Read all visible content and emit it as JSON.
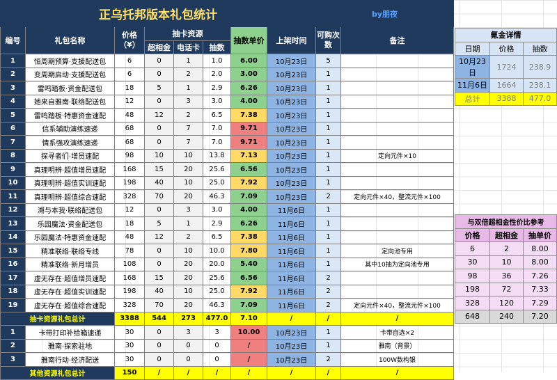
{
  "title": "正乌托邦版本礼包统计",
  "author": "by朋夜",
  "headers": {
    "idx": "编号",
    "name": "礼包名称",
    "price": "价格（¥）",
    "draw_group": "抽卡资源",
    "chaoxiang": "超相金",
    "dianhua": "电话卡",
    "draws": "抽数",
    "unit": "抽数单价",
    "date": "上架时间",
    "qty": "可购次数",
    "note": "备注"
  },
  "rows": [
    {
      "idx": "1",
      "name": "恒周期预算·支援配送包",
      "price": "6",
      "cx": "0",
      "dh": "1",
      "draws": "1.0",
      "unit": "6.00",
      "uc": "u-green",
      "date": "10月23日",
      "qty": "5",
      "note": ""
    },
    {
      "idx": "2",
      "name": "变周期启动·支援配送包",
      "price": "6",
      "cx": "0",
      "dh": "2",
      "draws": "2.0",
      "unit": "3.00",
      "uc": "u-green",
      "date": "10月23日",
      "qty": "1",
      "note": ""
    },
    {
      "idx": "3",
      "name": "雷鸣踏板·资金配送包",
      "price": "18",
      "cx": "5",
      "dh": "1",
      "draws": "2.9",
      "unit": "6.26",
      "uc": "u-green",
      "date": "10月23日",
      "qty": "1",
      "note": ""
    },
    {
      "idx": "4",
      "name": "她来自雅南·联络配送包",
      "price": "12",
      "cx": "0",
      "dh": "3",
      "draws": "3.0",
      "unit": "4.00",
      "uc": "u-green",
      "date": "10月23日",
      "qty": "1",
      "note": ""
    },
    {
      "idx": "5",
      "name": "雷鸣踏板·特惠资金速配",
      "price": "48",
      "cx": "12",
      "dh": "2",
      "draws": "6.5",
      "unit": "7.38",
      "uc": "u-yellow",
      "date": "10月23日",
      "qty": "1",
      "note": ""
    },
    {
      "idx": "6",
      "name": "信系辅助演练速递",
      "price": "68",
      "cx": "0",
      "dh": "7",
      "draws": "7.0",
      "unit": "9.71",
      "uc": "u-red",
      "date": "10月23日",
      "qty": "1",
      "note": ""
    },
    {
      "idx": "7",
      "name": "情系强攻演练速递",
      "price": "68",
      "cx": "0",
      "dh": "7",
      "draws": "7.0",
      "unit": "9.71",
      "uc": "u-red",
      "date": "10月23日",
      "qty": "1",
      "note": ""
    },
    {
      "idx": "8",
      "name": "探寻者们·增员速配",
      "price": "98",
      "cx": "10",
      "dh": "10",
      "draws": "13.8",
      "unit": "7.13",
      "uc": "u-yellow",
      "date": "10月23日",
      "qty": "1",
      "note": "定向元件×10"
    },
    {
      "idx": "9",
      "name": "真理明辨·超值增员速配",
      "price": "168",
      "cx": "15",
      "dh": "20",
      "draws": "25.6",
      "unit": "6.56",
      "uc": "u-green",
      "date": "10月23日",
      "qty": "1",
      "note": ""
    },
    {
      "idx": "10",
      "name": "真理明辨·超值实训速配",
      "price": "198",
      "cx": "40",
      "dh": "10",
      "draws": "25.0",
      "unit": "7.92",
      "uc": "u-yellow",
      "date": "10月23日",
      "qty": "1",
      "note": ""
    },
    {
      "idx": "11",
      "name": "真理明辨·超值综合速配",
      "price": "328",
      "cx": "70",
      "dh": "20",
      "draws": "46.3",
      "unit": "7.09",
      "uc": "u-green",
      "date": "10月23日",
      "qty": "2",
      "note": "定向元件×40，整流元件×100"
    },
    {
      "idx": "12",
      "name": "溯与本我·联络配送包",
      "price": "12",
      "cx": "0",
      "dh": "3",
      "draws": "3.0",
      "unit": "4.00",
      "uc": "u-green",
      "date": "11月6日",
      "qty": "1",
      "note": ""
    },
    {
      "idx": "13",
      "name": "乐园魔法·资金配送包",
      "price": "18",
      "cx": "5",
      "dh": "1",
      "draws": "2.9",
      "unit": "6.26",
      "uc": "u-green",
      "date": "11月6日",
      "qty": "1",
      "note": ""
    },
    {
      "idx": "14",
      "name": "乐园魔法·特惠资金速配",
      "price": "48",
      "cx": "12",
      "dh": "2",
      "draws": "6.5",
      "unit": "7.38",
      "uc": "u-yellow",
      "date": "11月6日",
      "qty": "1",
      "note": ""
    },
    {
      "idx": "15",
      "name": "精准联络·联络专线",
      "price": "78",
      "cx": "0",
      "dh": "10",
      "draws": "10.0",
      "unit": "7.80",
      "uc": "u-yellow",
      "date": "11月6日",
      "qty": "1",
      "note": "定向池专用"
    },
    {
      "idx": "16",
      "name": "精准联络·新月增员",
      "price": "108",
      "cx": "0",
      "dh": "20",
      "draws": "20.0",
      "unit": "5.40",
      "uc": "u-green",
      "date": "11月6日",
      "qty": "1",
      "note": "其中10抽为定向池专用"
    },
    {
      "idx": "17",
      "name": "虚无存在·超值增员速配",
      "price": "168",
      "cx": "15",
      "dh": "20",
      "draws": "25.6",
      "unit": "6.56",
      "uc": "u-green",
      "date": "11月6日",
      "qty": "2",
      "note": ""
    },
    {
      "idx": "18",
      "name": "虚无存在·超值实训速配",
      "price": "198",
      "cx": "40",
      "dh": "10",
      "draws": "25.0",
      "unit": "7.92",
      "uc": "u-yellow",
      "date": "11月6日",
      "qty": "2",
      "note": ""
    },
    {
      "idx": "19",
      "name": "虚无存在·超值综合速配",
      "price": "328",
      "cx": "70",
      "dh": "20",
      "draws": "46.3",
      "unit": "7.09",
      "uc": "u-green",
      "date": "11月6日",
      "qty": "2",
      "note": "定向元件×40，整流元件×100"
    }
  ],
  "total1": {
    "label": "抽卡资源礼包总计",
    "price": "3388",
    "cx": "544",
    "dh": "273",
    "draws": "477.0",
    "unit": "7.10",
    "date": "/",
    "qty": "/",
    "note": "/"
  },
  "rows2": [
    {
      "idx": "1",
      "name": "卡带打印补给箱速递",
      "price": "30",
      "cx": "0",
      "dh": "3",
      "draws": "3",
      "unit": "10.00",
      "uc": "u-red",
      "date": "10月23日",
      "qty": "1",
      "note": "卡带自选×2"
    },
    {
      "idx": "2",
      "name": "雅南·探索驻地",
      "price": "30",
      "cx": "0",
      "dh": "0",
      "draws": "0",
      "unit": "/",
      "uc": "u-red",
      "date": "10月23日",
      "qty": "1",
      "note": "雅南（背景）"
    },
    {
      "idx": "3",
      "name": "雅南行动·经济配送",
      "price": "30",
      "cx": "0",
      "dh": "0",
      "draws": "0",
      "unit": "/",
      "uc": "u-red",
      "date": "10月23日",
      "qty": "2",
      "note": "100W数构银"
    }
  ],
  "total2": {
    "label": "其他资源礼包总计",
    "price": "150",
    "cx": "/",
    "dh": "/",
    "draws": "/",
    "unit": "/",
    "date": "/",
    "qty": "/",
    "note": "/"
  },
  "gold": {
    "title": "氪金详情",
    "headers": [
      "日期",
      "价格",
      "抽数"
    ],
    "rows": [
      {
        "date": "10月23日",
        "price": "1724",
        "draws": "238.9"
      },
      {
        "date": "11月6日",
        "price": "1664",
        "draws": "238.1"
      }
    ],
    "total": {
      "label": "总计",
      "price": "3388",
      "draws": "477.0"
    }
  },
  "compare": {
    "title": "与双倍超相金性价比参考",
    "headers": [
      "价格",
      "超相金",
      "抽单价"
    ],
    "rows": [
      {
        "price": "6",
        "cx": "2",
        "unit": "8.00"
      },
      {
        "price": "30",
        "cx": "10",
        "unit": "8.00"
      },
      {
        "price": "98",
        "cx": "36",
        "unit": "7.26"
      },
      {
        "price": "198",
        "cx": "72",
        "unit": "7.33"
      },
      {
        "price": "328",
        "cx": "120",
        "unit": "7.29"
      },
      {
        "price": "648",
        "cx": "240",
        "unit": "7.20"
      }
    ]
  }
}
